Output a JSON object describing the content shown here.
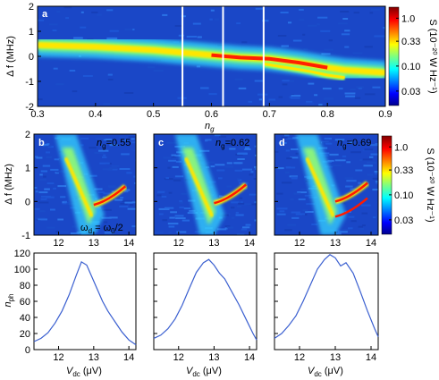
{
  "chart_data": [
    {
      "panel_letter": "a",
      "type": "heatmap",
      "xlabel": "n",
      "xlabel_sub": "g",
      "ylabel": "Δ f (MHz)",
      "xlim": [
        0.3,
        0.9
      ],
      "ylim": [
        -2,
        2
      ],
      "xticks": [
        "0.3",
        "0.4",
        "0.5",
        "0.6",
        "0.7",
        "0.8",
        "0.9"
      ],
      "yticks": [
        "-2",
        "-1",
        "0",
        "1",
        "2"
      ],
      "vertical_markers": [
        0.55,
        0.62,
        0.69
      ],
      "ridge": {
        "x": [
          0.3,
          0.4,
          0.5,
          0.6,
          0.65,
          0.7,
          0.75,
          0.8,
          0.83,
          0.9
        ],
        "y": [
          0.45,
          0.38,
          0.25,
          0.05,
          -0.05,
          -0.1,
          -0.25,
          -0.45,
          -0.55,
          -0.65
        ]
      },
      "side_branch": {
        "x": [
          0.69,
          0.73,
          0.77,
          0.8,
          0.83
        ],
        "y": [
          -0.3,
          -0.45,
          -0.6,
          -0.75,
          -0.85
        ]
      },
      "colorbar": {
        "label": "S (10⁻²⁰ W Hz⁻¹)",
        "ticks": [
          "1.0",
          "0.33",
          "0.10",
          "0.03"
        ],
        "scale": "log"
      }
    },
    {
      "panel_letter": "b",
      "type": "heatmap",
      "annotation": "n",
      "annotation_sub": "g",
      "annotation_value": "=0.55",
      "annotation2": "ω",
      "annotation2_sub1": "d",
      "annotation2_mid": " = ω",
      "annotation2_sub2": "0",
      "annotation2_end": "/2",
      "ylabel": "Δ f (MHz)",
      "xlim": [
        11.3,
        14.2
      ],
      "ylim": [
        -1,
        2
      ],
      "xticks": [
        "12",
        "13",
        "14"
      ],
      "yticks": [
        "-1",
        "0",
        "1",
        "2"
      ]
    },
    {
      "panel_letter": "c",
      "type": "heatmap",
      "annotation": "n",
      "annotation_sub": "g",
      "annotation_value": "=0.62",
      "xlim": [
        11.3,
        14.2
      ],
      "ylim": [
        -1,
        2
      ],
      "xticks": [
        "12",
        "13",
        "14"
      ]
    },
    {
      "panel_letter": "d",
      "type": "heatmap",
      "annotation": "n",
      "annotation_sub": "g",
      "annotation_value": "=0.69",
      "xlim": [
        11.3,
        14.2
      ],
      "ylim": [
        -1,
        2
      ],
      "xticks": [
        "12",
        "13",
        "14"
      ],
      "colorbar": {
        "label": "S (10⁻²⁰ W Hz⁻¹)",
        "ticks": [
          "1.0",
          "0.33",
          "0.10",
          "0.03"
        ],
        "scale": "log"
      }
    },
    {
      "type": "line",
      "ylabel": "n",
      "ylabel_sub": "ph",
      "xlabel": "V",
      "xlabel_sub": "dc",
      "xlabel_unit": " (μV)",
      "xlim": [
        11.3,
        14.2
      ],
      "ylim": [
        0,
        120
      ],
      "xticks": [
        "12",
        "13",
        "14"
      ],
      "yticks": [
        "0",
        "20",
        "40",
        "60",
        "80",
        "100",
        "120"
      ],
      "series": [
        {
          "color": "#3a5fd0",
          "x": [
            11.3,
            11.5,
            11.7,
            11.9,
            12.1,
            12.3,
            12.5,
            12.65,
            12.8,
            12.95,
            13.1,
            13.25,
            13.4,
            13.6,
            13.8,
            14.0,
            14.2
          ],
          "y": [
            10,
            14,
            21,
            33,
            48,
            68,
            92,
            109,
            105,
            90,
            75,
            60,
            48,
            35,
            22,
            12,
            6
          ]
        }
      ]
    },
    {
      "type": "line",
      "xlabel": "V",
      "xlabel_sub": "dc",
      "xlabel_unit": " (μV)",
      "xlim": [
        11.3,
        14.2
      ],
      "ylim": [
        0,
        120
      ],
      "xticks": [
        "12",
        "13",
        "14"
      ],
      "series": [
        {
          "color": "#3a5fd0",
          "x": [
            11.3,
            11.5,
            11.7,
            11.9,
            12.1,
            12.3,
            12.5,
            12.7,
            12.85,
            13.0,
            13.15,
            13.3,
            13.5,
            13.7,
            13.9,
            14.1,
            14.2
          ],
          "y": [
            14,
            18,
            26,
            38,
            55,
            76,
            96,
            108,
            112,
            105,
            95,
            88,
            72,
            56,
            38,
            20,
            12
          ]
        }
      ]
    },
    {
      "type": "line",
      "xlabel": "V",
      "xlabel_sub": "dc",
      "xlabel_unit": " (μV)",
      "xlim": [
        11.3,
        14.2
      ],
      "ylim": [
        0,
        120
      ],
      "xticks": [
        "12",
        "13",
        "14"
      ],
      "series": [
        {
          "color": "#3a5fd0",
          "x": [
            11.3,
            11.5,
            11.7,
            11.9,
            12.1,
            12.3,
            12.5,
            12.7,
            12.85,
            13.0,
            13.15,
            13.3,
            13.5,
            13.7,
            13.9,
            14.1,
            14.2
          ],
          "y": [
            14,
            20,
            30,
            42,
            60,
            80,
            100,
            112,
            118,
            114,
            104,
            108,
            95,
            72,
            48,
            26,
            16
          ]
        }
      ]
    }
  ]
}
